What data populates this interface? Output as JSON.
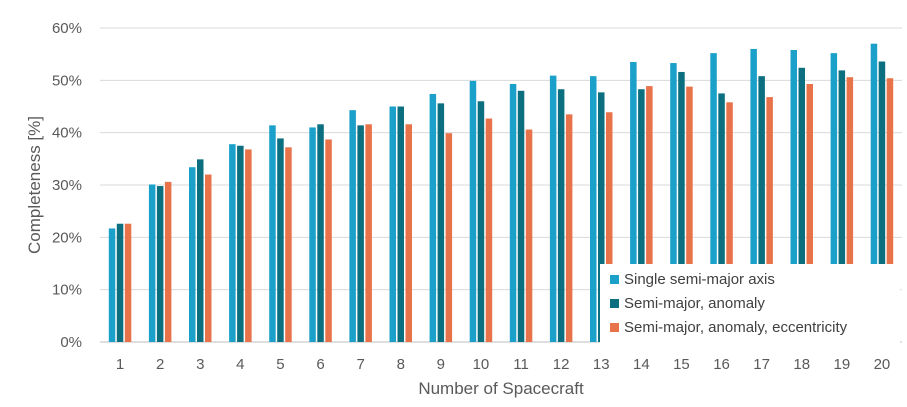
{
  "chart_data": {
    "type": "bar",
    "title": "",
    "xlabel": "Number of Spacecraft",
    "ylabel": "Completeness [%]",
    "ylim": [
      0,
      60
    ],
    "yticks": [
      "0%",
      "10%",
      "20%",
      "30%",
      "40%",
      "50%",
      "60%"
    ],
    "grid": true,
    "legend_position": "bottom-right",
    "categories": [
      "1",
      "2",
      "3",
      "4",
      "5",
      "6",
      "7",
      "8",
      "9",
      "10",
      "11",
      "12",
      "13",
      "14",
      "15",
      "16",
      "17",
      "18",
      "19",
      "20"
    ],
    "series": [
      {
        "name": "Single semi-major axis",
        "color": "#1BA1C9",
        "values": [
          21.7,
          30.1,
          33.4,
          37.8,
          41.4,
          41.0,
          44.3,
          45.0,
          47.4,
          49.9,
          49.3,
          50.9,
          50.8,
          53.5,
          53.3,
          55.2,
          56.0,
          55.8,
          55.2,
          57.0
        ]
      },
      {
        "name": "Semi-major, anomaly",
        "color": "#0B6F80",
        "values": [
          22.6,
          29.8,
          34.9,
          37.5,
          38.9,
          41.6,
          41.4,
          45.0,
          45.6,
          46.0,
          48.0,
          48.3,
          47.7,
          48.3,
          51.6,
          47.5,
          50.8,
          52.4,
          51.9,
          53.6
        ]
      },
      {
        "name": "Semi-major, anomaly, eccentricity",
        "color": "#E8734A",
        "values": [
          22.6,
          30.6,
          32.0,
          36.8,
          37.2,
          38.7,
          41.6,
          41.6,
          39.9,
          42.7,
          40.6,
          43.5,
          43.9,
          48.9,
          48.8,
          45.8,
          46.8,
          49.3,
          50.6,
          50.4
        ]
      }
    ]
  }
}
